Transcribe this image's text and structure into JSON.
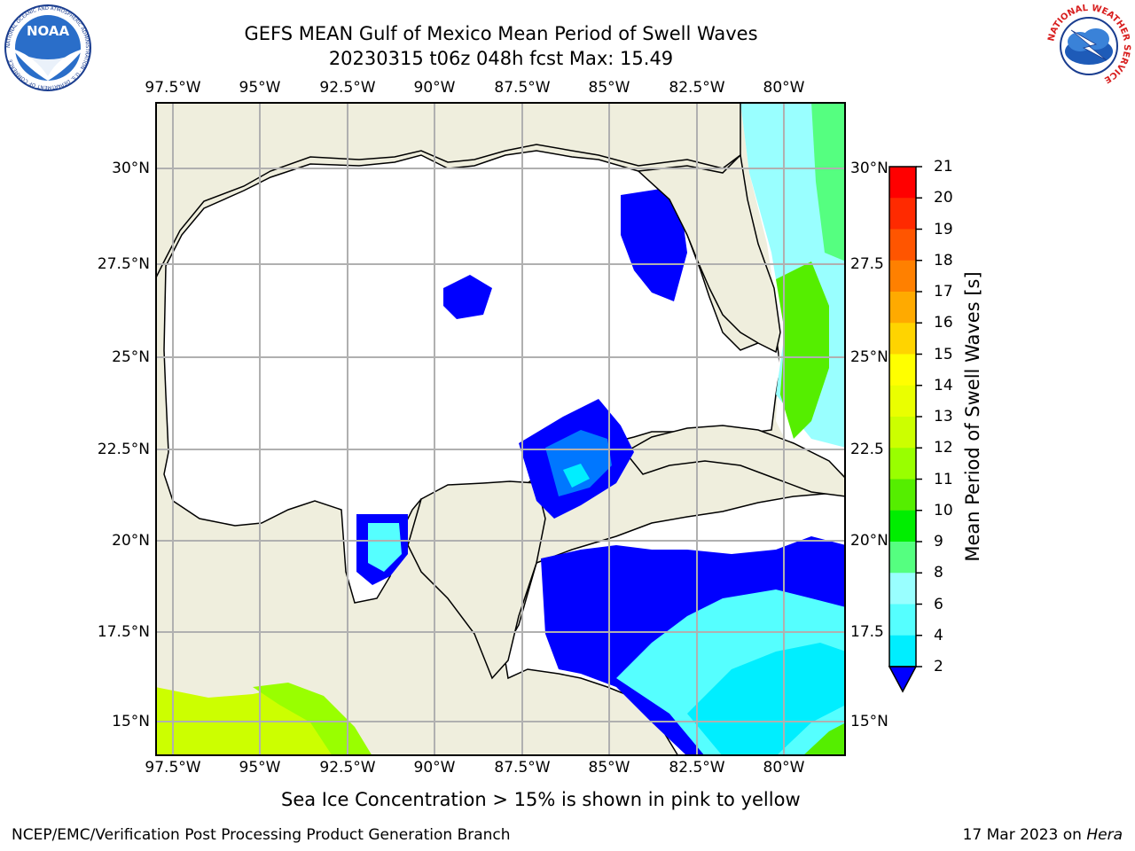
{
  "header": {
    "title_line1": "GEFS MEAN Gulf of Mexico Mean Period of Swell Waves",
    "title_line2": "20230315 t06z 048h fcst   Max: 15.49"
  },
  "axes": {
    "lon_ticks": [
      "97.5°W",
      "95°W",
      "92.5°W",
      "90°W",
      "87.5°W",
      "85°W",
      "82.5°W",
      "80°W"
    ],
    "lat_ticks_left": [
      "30°N",
      "27.5°N",
      "25°N",
      "22.5°N",
      "20°N",
      "17.5°N",
      "15°N"
    ],
    "lat_ticks_right": [
      "30°N",
      "27.5",
      "25°N",
      "22.5",
      "20°N",
      "17.5",
      "15°N"
    ]
  },
  "colorbar": {
    "title": "Mean Period of Swell Waves [s]",
    "labels": [
      "21",
      "20",
      "19",
      "18",
      "17",
      "16",
      "15",
      "14",
      "13",
      "12",
      "11",
      "10",
      "9",
      "8",
      "6",
      "4",
      "2"
    ],
    "colors": [
      "#ff0000",
      "#ff2a00",
      "#ff5500",
      "#ff8000",
      "#ffaa00",
      "#ffd400",
      "#ffff00",
      "#eaff00",
      "#ccff00",
      "#99ff00",
      "#55ee00",
      "#00ee00",
      "#55ff80",
      "#99ffff",
      "#55ffff",
      "#00eeff",
      "#0077ff",
      "#0000ff"
    ]
  },
  "map_colors": {
    "land": "#efeedd",
    "water": "#ffffff",
    "grid": "#b0b0b0"
  },
  "note": "Sea Ice Concentration > 15% is shown in pink to yellow",
  "footer": {
    "left": "NCEP/EMC/Verification Post Processing Product Generation Branch",
    "date": "17 Mar 2023 on ",
    "host": "Hera"
  },
  "logos": {
    "noaa_text": "NOAA",
    "noaa_ring": "NATIONAL OCEANIC AND ATMOSPHERIC ADMINISTRATION · U.S. DEPARTMENT OF COMMERCE",
    "nws_ring": "NATIONAL WEATHER SERVICE"
  }
}
